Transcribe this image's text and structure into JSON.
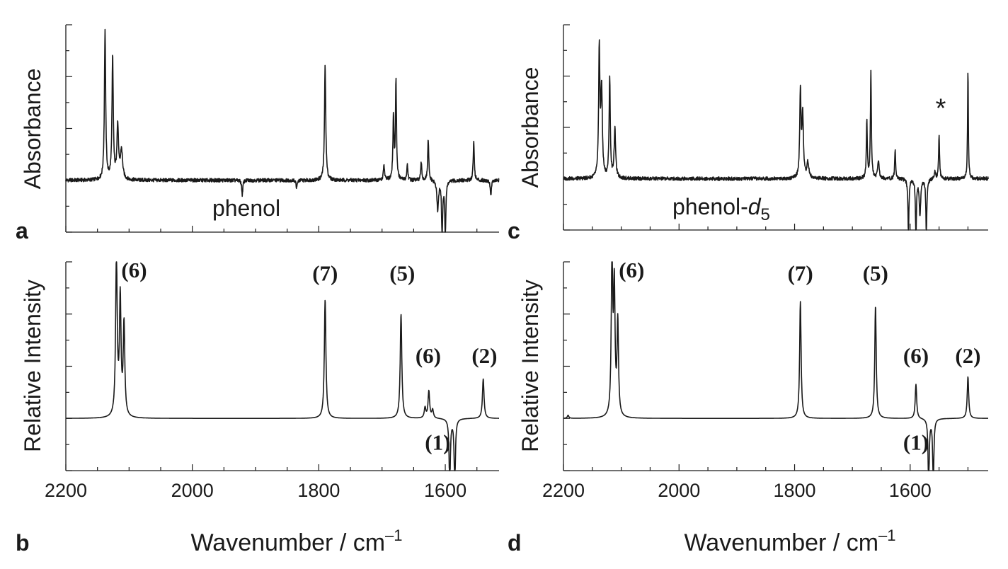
{
  "chart_data": [
    {
      "id": "a",
      "type": "line",
      "panel_letter": "a",
      "ylabel": "Absorbance",
      "inner_label": "phenol",
      "inner_label_suffix": "",
      "xlim": [
        2200,
        1515
      ],
      "ylim": [
        -0.5,
        1.5
      ],
      "baseline": 0,
      "xticks": [
        2200,
        2000,
        1800,
        1600
      ],
      "show_xtick_labels": false,
      "peaks": [
        {
          "x": 2138,
          "y": 1.43,
          "w": 1.2
        },
        {
          "x": 2126,
          "y": 1.18,
          "w": 1.2
        },
        {
          "x": 2118,
          "y": 0.52,
          "w": 1.5
        },
        {
          "x": 2112,
          "y": 0.28,
          "w": 2.0
        },
        {
          "x": 1921,
          "y": -0.14,
          "w": 1.0
        },
        {
          "x": 1835,
          "y": -0.08,
          "w": 1.0
        },
        {
          "x": 1790,
          "y": 1.11,
          "w": 1.2
        },
        {
          "x": 1697,
          "y": 0.15,
          "w": 1.0
        },
        {
          "x": 1682,
          "y": 0.6,
          "w": 1.0
        },
        {
          "x": 1678,
          "y": 0.95,
          "w": 1.0
        },
        {
          "x": 1660,
          "y": 0.15,
          "w": 1.0
        },
        {
          "x": 1638,
          "y": 0.17,
          "w": 1.0
        },
        {
          "x": 1627,
          "y": 0.4,
          "w": 1.0
        },
        {
          "x": 1612,
          "y": -0.28,
          "w": 1.5
        },
        {
          "x": 1605,
          "y": -0.55,
          "w": 1.0
        },
        {
          "x": 1600,
          "y": -0.55,
          "w": 1.0
        },
        {
          "x": 1555,
          "y": 0.38,
          "w": 1.0
        },
        {
          "x": 1528,
          "y": -0.15,
          "w": 1.0
        }
      ]
    },
    {
      "id": "b",
      "type": "line",
      "panel_letter": "b",
      "ylabel": "Relative Intensity",
      "xlabel": "Wavenumber / cm",
      "xlabel_sup": "–1",
      "xlim": [
        2200,
        1515
      ],
      "ylim": [
        -0.5,
        1.5
      ],
      "baseline": 0,
      "xticks": [
        2200,
        2000,
        1800,
        1600
      ],
      "show_xtick_labels": true,
      "peaks": [
        {
          "x": 2120,
          "y": 1.55,
          "w": 1.5
        },
        {
          "x": 2114,
          "y": 1.12,
          "w": 1.5
        },
        {
          "x": 2108,
          "y": 0.88,
          "w": 1.5
        },
        {
          "x": 1790,
          "y": 1.14,
          "w": 1.5
        },
        {
          "x": 1670,
          "y": 1.0,
          "w": 1.5
        },
        {
          "x": 1632,
          "y": 0.1,
          "w": 1.5
        },
        {
          "x": 1626,
          "y": 0.26,
          "w": 1.5
        },
        {
          "x": 1620,
          "y": 0.08,
          "w": 1.5
        },
        {
          "x": 1593,
          "y": -0.65,
          "w": 1.2
        },
        {
          "x": 1585,
          "y": -0.65,
          "w": 1.2
        },
        {
          "x": 1540,
          "y": 0.38,
          "w": 1.5
        }
      ],
      "annotations": [
        {
          "text": "(6)",
          "x": 2092,
          "y": 1.35
        },
        {
          "text": "(7)",
          "x": 1790,
          "y": 1.32
        },
        {
          "text": "(5)",
          "x": 1668,
          "y": 1.32
        },
        {
          "text": "(6)",
          "x": 1627,
          "y": 0.53
        },
        {
          "text": "(2)",
          "x": 1538,
          "y": 0.53
        },
        {
          "text": "(1)",
          "x": 1612,
          "y": -0.3
        }
      ]
    },
    {
      "id": "c",
      "type": "line",
      "panel_letter": "c",
      "ylabel": "Absorbance",
      "inner_label": "phenol-",
      "inner_label_suffix": "d",
      "inner_label_sub": "5",
      "xlim": [
        2200,
        1465
      ],
      "ylim": [
        -0.5,
        1.5
      ],
      "baseline": 0,
      "xticks": [
        2200,
        2000,
        1800,
        1600
      ],
      "show_xtick_labels": false,
      "peaks": [
        {
          "x": 2138,
          "y": 1.25,
          "w": 1.3
        },
        {
          "x": 2134,
          "y": 0.85,
          "w": 1.5
        },
        {
          "x": 2120,
          "y": 0.98,
          "w": 1.2
        },
        {
          "x": 2111,
          "y": 0.48,
          "w": 1.5
        },
        {
          "x": 1790,
          "y": 0.84,
          "w": 1.3
        },
        {
          "x": 1786,
          "y": 0.6,
          "w": 1.5
        },
        {
          "x": 1777,
          "y": 0.15,
          "w": 2.0
        },
        {
          "x": 1675,
          "y": 0.55,
          "w": 1.0
        },
        {
          "x": 1668,
          "y": 1.03,
          "w": 1.0
        },
        {
          "x": 1655,
          "y": 0.18,
          "w": 1.5
        },
        {
          "x": 1626,
          "y": 0.27,
          "w": 1.0
        },
        {
          "x": 1603,
          "y": -0.55,
          "w": 1.0
        },
        {
          "x": 1590,
          "y": -0.55,
          "w": 1.0
        },
        {
          "x": 1583,
          "y": -0.35,
          "w": 1.5
        },
        {
          "x": 1572,
          "y": -0.55,
          "w": 1.0
        },
        {
          "x": 1557,
          "y": 0.07,
          "w": 1.2
        },
        {
          "x": 1550,
          "y": 0.41,
          "w": 1.0
        },
        {
          "x": 1500,
          "y": 1.06,
          "w": 0.8
        }
      ],
      "annotations": [
        {
          "text": "*",
          "x": 1547,
          "y": 0.6
        }
      ]
    },
    {
      "id": "d",
      "type": "line",
      "panel_letter": "d",
      "ylabel": "Relative Intensity",
      "xlabel": "Wavenumber / cm",
      "xlabel_sup": "–1",
      "xlim": [
        2200,
        1465
      ],
      "ylim": [
        -0.5,
        1.5
      ],
      "baseline": 0,
      "xticks": [
        2200,
        2000,
        1800,
        1600
      ],
      "show_xtick_labels": true,
      "peaks": [
        {
          "x": 2192,
          "y": 0.03,
          "w": 1.5
        },
        {
          "x": 2116,
          "y": 1.55,
          "w": 1.5
        },
        {
          "x": 2112,
          "y": 1.2,
          "w": 1.5
        },
        {
          "x": 2106,
          "y": 0.9,
          "w": 1.5
        },
        {
          "x": 1790,
          "y": 1.12,
          "w": 1.5
        },
        {
          "x": 1660,
          "y": 1.08,
          "w": 1.5
        },
        {
          "x": 1590,
          "y": 0.33,
          "w": 1.5
        },
        {
          "x": 1568,
          "y": -0.65,
          "w": 1.2
        },
        {
          "x": 1560,
          "y": -0.65,
          "w": 1.2
        },
        {
          "x": 1500,
          "y": 0.4,
          "w": 1.5
        }
      ],
      "annotations": [
        {
          "text": "(6)",
          "x": 2082,
          "y": 1.35
        },
        {
          "text": "(7)",
          "x": 1790,
          "y": 1.32
        },
        {
          "text": "(5)",
          "x": 1660,
          "y": 1.32
        },
        {
          "text": "(6)",
          "x": 1590,
          "y": 0.53
        },
        {
          "text": "(2)",
          "x": 1500,
          "y": 0.53
        },
        {
          "text": "(1)",
          "x": 1590,
          "y": -0.3
        }
      ]
    }
  ]
}
